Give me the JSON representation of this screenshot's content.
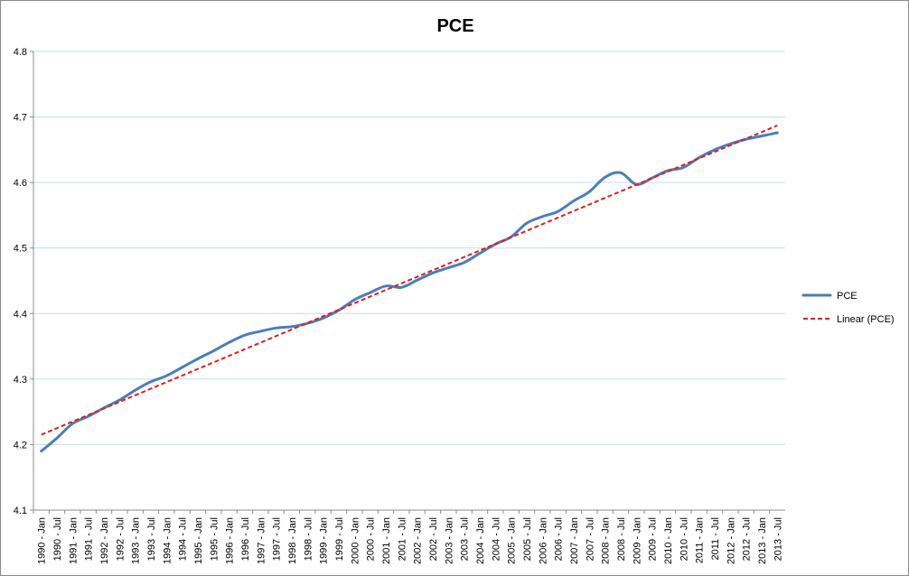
{
  "chart_data": {
    "type": "line",
    "title": "PCE",
    "xlabel": "",
    "ylabel": "",
    "ylim": [
      4.1,
      4.8
    ],
    "yticks": [
      "4.1",
      "4.2",
      "4.3",
      "4.4",
      "4.5",
      "4.6",
      "4.7",
      "4.8"
    ],
    "grid": "horizontal",
    "legend_position": "right",
    "x_tick_labels": [
      "1990 - Jan",
      "1990 - Jul",
      "1991 - Jan",
      "1991 - Jul",
      "1992 - Jan",
      "1992 - Jul",
      "1993 - Jan",
      "1993 - Jul",
      "1994 - Jan",
      "1994 - Jul",
      "1995 - Jan",
      "1995 - Jul",
      "1996 - Jan",
      "1996 - Jul",
      "1997 - Jan",
      "1997 - Jul",
      "1998 - Jan",
      "1998 - Jul",
      "1999 - Jan",
      "1999 - Jul",
      "2000 - Jan",
      "2000 - Jul",
      "2001 - Jan",
      "2001 - Jul",
      "2002 - Jan",
      "2002 - Jul",
      "2003 - Jan",
      "2003 - Jul",
      "2004 - Jan",
      "2004 - Jul",
      "2005 - Jan",
      "2005 - Jul",
      "2006 - Jan",
      "2006 - Jul",
      "2007 - Jan",
      "2007 - Jul",
      "2008 - Jan",
      "2008 - Jul",
      "2009 - Jan",
      "2009 - Jul",
      "2010 - Jan",
      "2010 - Jul",
      "2011 - Jan",
      "2011 - Jul",
      "2012 - Jan",
      "2012 - Jul",
      "2013 - Jan",
      "2013 - Jul"
    ],
    "series": [
      {
        "name": "PCE",
        "color": "#4a7ebb",
        "style": "solid",
        "x": [
          "1990 - Jan",
          "1990 - Jul",
          "1991 - Jan",
          "1991 - Jul",
          "1992 - Jan",
          "1992 - Jul",
          "1993 - Jan",
          "1993 - Jul",
          "1994 - Jan",
          "1994 - Jul",
          "1995 - Jan",
          "1995 - Jul",
          "1996 - Jan",
          "1996 - Jul",
          "1997 - Jan",
          "1997 - Jul",
          "1998 - Jan",
          "1998 - Jul",
          "1999 - Jan",
          "1999 - Jul",
          "2000 - Jan",
          "2000 - Jul",
          "2001 - Jan",
          "2001 - Jul",
          "2002 - Jan",
          "2002 - Jul",
          "2003 - Jan",
          "2003 - Jul",
          "2004 - Jan",
          "2004 - Jul",
          "2005 - Jan",
          "2005 - Jul",
          "2006 - Jan",
          "2006 - Jul",
          "2007 - Jan",
          "2007 - Jul",
          "2008 - Jan",
          "2008 - Jul",
          "2009 - Jan",
          "2009 - Jul",
          "2010 - Jan",
          "2010 - Jul",
          "2011 - Jan",
          "2011 - Jul",
          "2012 - Jan",
          "2012 - Jul",
          "2013 - Jan",
          "2013 - Jul"
        ],
        "values": [
          4.19,
          4.21,
          4.232,
          4.243,
          4.256,
          4.268,
          4.283,
          4.296,
          4.305,
          4.318,
          4.331,
          4.343,
          4.356,
          4.367,
          4.373,
          4.378,
          4.38,
          4.385,
          4.393,
          4.405,
          4.421,
          4.432,
          4.442,
          4.44,
          4.451,
          4.462,
          4.47,
          4.478,
          4.492,
          4.506,
          4.517,
          4.538,
          4.548,
          4.556,
          4.572,
          4.586,
          4.608,
          4.615,
          4.597,
          4.607,
          4.618,
          4.623,
          4.638,
          4.65,
          4.659,
          4.666,
          4.671,
          4.676
        ]
      },
      {
        "name": "Linear (PCE)",
        "color": "#e11f1f",
        "style": "dashed",
        "x": [
          "1990 - Jan",
          "2013 - Jul"
        ],
        "values": [
          4.215,
          4.687
        ]
      }
    ]
  }
}
